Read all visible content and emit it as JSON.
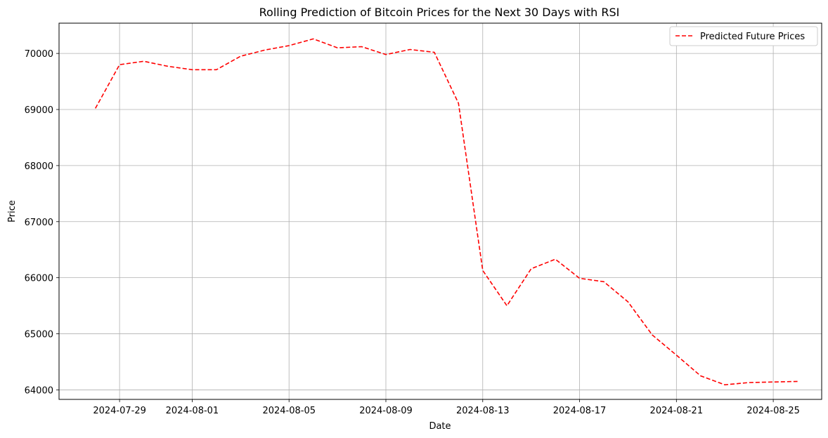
{
  "chart_data": {
    "type": "line",
    "title": "Rolling Prediction of Bitcoin Prices for the Next 30 Days with RSI",
    "xlabel": "Date",
    "ylabel": "Price",
    "grid": true,
    "legend_position": "top-right",
    "x_ticks": [
      "2024-07-29",
      "2024-08-01",
      "2024-08-05",
      "2024-08-09",
      "2024-08-13",
      "2024-08-17",
      "2024-08-21",
      "2024-08-25"
    ],
    "y_ticks": [
      64000,
      65000,
      66000,
      67000,
      68000,
      69000,
      70000
    ],
    "xlim": [
      "2024-07-26T12:00",
      "2024-08-27T00:00"
    ],
    "ylim": [
      63830,
      70540
    ],
    "series": [
      {
        "name": "Predicted Future Prices",
        "color": "#ff0000",
        "line_style": "dashed",
        "x": [
          "2024-07-28",
          "2024-07-29",
          "2024-07-30",
          "2024-07-31",
          "2024-08-01",
          "2024-08-02",
          "2024-08-03",
          "2024-08-04",
          "2024-08-05",
          "2024-08-06",
          "2024-08-07",
          "2024-08-08",
          "2024-08-09",
          "2024-08-10",
          "2024-08-11",
          "2024-08-12",
          "2024-08-13",
          "2024-08-14",
          "2024-08-15",
          "2024-08-16",
          "2024-08-17",
          "2024-08-18",
          "2024-08-19",
          "2024-08-20",
          "2024-08-21",
          "2024-08-22",
          "2024-08-23",
          "2024-08-24",
          "2024-08-25",
          "2024-08-26"
        ],
        "values": [
          69020,
          69800,
          69860,
          69770,
          69710,
          69710,
          69950,
          70060,
          70140,
          70260,
          70100,
          70120,
          69980,
          70070,
          70020,
          69110,
          66130,
          65500,
          66160,
          66330,
          65990,
          65930,
          65570,
          64980,
          64620,
          64250,
          64090,
          64130,
          64140,
          64150
        ]
      }
    ]
  }
}
